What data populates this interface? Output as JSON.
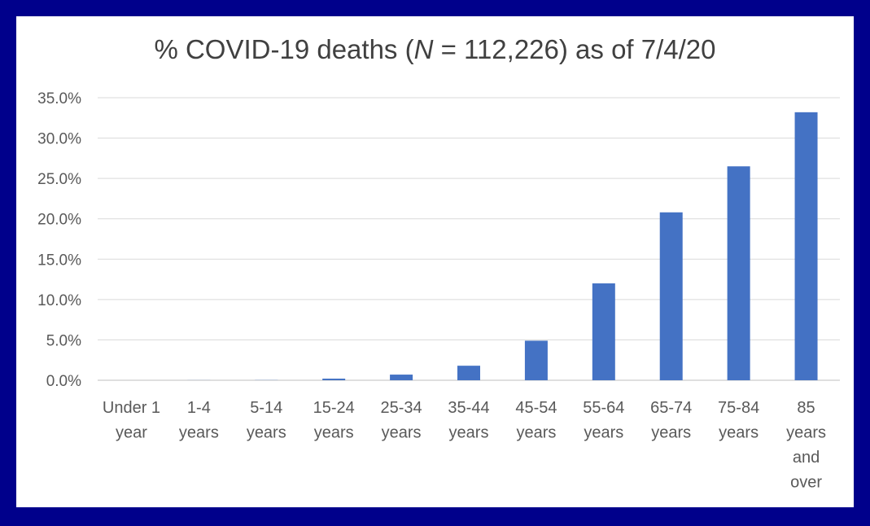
{
  "chart_data": {
    "type": "bar",
    "title": {
      "prefix": "% COVID-19 deaths (",
      "italic": "N",
      "suffix": " = 112,226) as of 7/4/20"
    },
    "categories": [
      [
        "Under 1",
        "year"
      ],
      [
        "1-4",
        "years"
      ],
      [
        "5-14",
        "years"
      ],
      [
        "15-24",
        "years"
      ],
      [
        "25-34",
        "years"
      ],
      [
        "35-44",
        "years"
      ],
      [
        "45-54",
        "years"
      ],
      [
        "55-64",
        "years"
      ],
      [
        "65-74",
        "years"
      ],
      [
        "75-84",
        "years"
      ],
      [
        "85",
        "years",
        "and",
        "over"
      ]
    ],
    "values": [
      0.0,
      0.01,
      0.02,
      0.2,
      0.7,
      1.8,
      4.9,
      12.0,
      20.8,
      26.5,
      33.2
    ],
    "y_ticks": [
      "0.0%",
      "5.0%",
      "10.0%",
      "15.0%",
      "20.0%",
      "25.0%",
      "30.0%",
      "35.0%"
    ],
    "ylim": [
      0,
      35
    ],
    "grid": true,
    "bar_color": "#4472c4",
    "background": "#00008b"
  }
}
